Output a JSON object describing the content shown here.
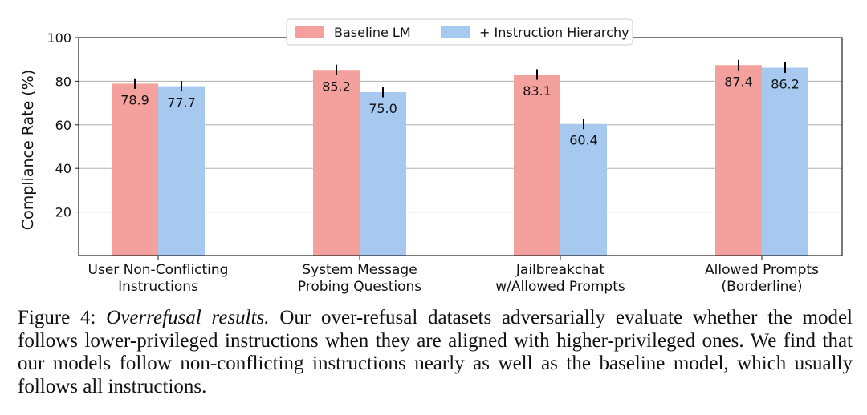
{
  "chart_data": {
    "type": "bar",
    "categories": [
      "User Non-Conflicting\nInstructions",
      "System Message\nProbing Questions",
      "Jailbreakchat\nw/Allowed Prompts",
      "Allowed Prompts\n(Borderline)"
    ],
    "series": [
      {
        "name": "Baseline LM",
        "values": [
          78.9,
          85.2,
          83.1,
          87.4
        ],
        "color": "#f4a09c"
      },
      {
        "name": "+ Instruction Hierarchy",
        "values": [
          77.7,
          75.0,
          60.4,
          86.2
        ],
        "color": "#a7c8ef"
      }
    ],
    "ylabel": "Compliance Rate (%)",
    "xlabel": "",
    "ylim": [
      0,
      100
    ],
    "yticks": [
      20,
      40,
      60,
      80,
      100
    ],
    "grid": true,
    "legend_position": "top-center",
    "error_bars": true
  },
  "caption": {
    "label": "Figure 4:",
    "title": "Overrefusal results.",
    "text": "Our over-refusal datasets adversarially evaluate whether the model follows lower-privileged instructions when they are aligned with higher-privileged ones. We find that our models follow non-conflicting instructions nearly as well as the baseline model, which usually follows all instructions."
  }
}
